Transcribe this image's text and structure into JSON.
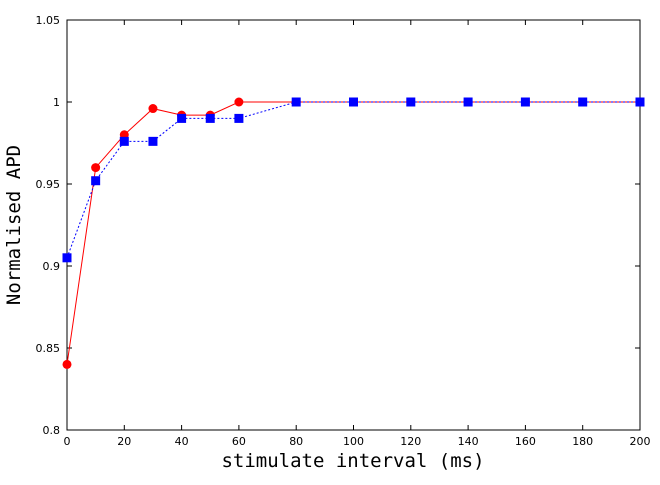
{
  "chart_data": {
    "type": "line",
    "title": "",
    "xlabel": "stimulate interval (ms)",
    "ylabel": "Normalised APD",
    "xlim": [
      0,
      200
    ],
    "ylim": [
      0.8,
      1.05
    ],
    "xticks": [
      0,
      20,
      40,
      60,
      80,
      100,
      120,
      140,
      160,
      180,
      200
    ],
    "xtick_labels": [
      "0",
      "20",
      "40",
      "60",
      "80",
      "100",
      "120",
      "140",
      "160",
      "180",
      "200"
    ],
    "yticks": [
      0.8,
      0.85,
      0.9,
      0.95,
      1.0,
      1.05
    ],
    "ytick_labels": [
      "0.8",
      "0.85",
      "0.9",
      "0.95",
      "1",
      "1.05"
    ],
    "grid": false,
    "legend": "none",
    "series": [
      {
        "color": "#ff0000",
        "marker": "circle",
        "line_style": "solid",
        "x": [
          0,
          10,
          20,
          30,
          40,
          50,
          60,
          80,
          100,
          120,
          140,
          160,
          180,
          200
        ],
        "y": [
          0.84,
          0.96,
          0.98,
          0.996,
          0.992,
          0.992,
          1.0,
          1.0,
          1.0,
          1.0,
          1.0,
          1.0,
          1.0,
          1.0
        ]
      },
      {
        "color": "#0000ff",
        "marker": "square",
        "line_style": "dotted",
        "x": [
          0,
          10,
          20,
          30,
          40,
          50,
          60,
          80,
          100,
          120,
          140,
          160,
          180,
          200
        ],
        "y": [
          0.905,
          0.952,
          0.976,
          0.976,
          0.99,
          0.99,
          0.99,
          1.0,
          1.0,
          1.0,
          1.0,
          1.0,
          1.0,
          1.0
        ]
      }
    ]
  }
}
